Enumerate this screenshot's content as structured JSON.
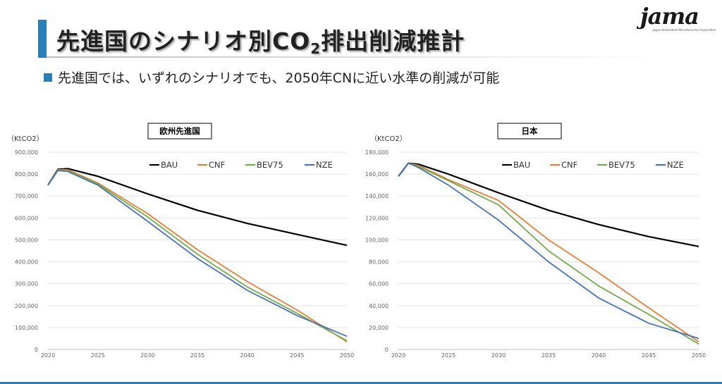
{
  "header": {
    "title_main": "先進国のシナリオ別CO",
    "title_sub": "2",
    "title_rest": "排出削減推計",
    "logo_word": "jama",
    "logo_tagline": "Japan Automobile Manufacturers Association"
  },
  "bullet": "先進国では、いずれのシナリオでも、2050年CNに近い水準の削減が可能",
  "colors": {
    "BAU": "#000000",
    "CNF": "#ed7d31",
    "BEV75": "#70ad47",
    "NZE": "#4472c4",
    "accent": "#2a7fb8"
  },
  "chart_data": [
    {
      "type": "line",
      "title": "欧州先進国",
      "ylabel": "（KtCO2）",
      "xlim": [
        2020,
        2050
      ],
      "ylim": [
        0,
        900000
      ],
      "x_ticks": [
        2020,
        2025,
        2030,
        2035,
        2040,
        2045,
        2050
      ],
      "y_ticks": [
        0,
        100000,
        200000,
        300000,
        400000,
        500000,
        600000,
        700000,
        800000,
        900000
      ],
      "y_tick_labels": [
        "0",
        "100,000",
        "200,000",
        "300,000",
        "400,000",
        "500,000",
        "600,000",
        "700,000",
        "800,000",
        "900,000"
      ],
      "grid": true,
      "legend": "top-right",
      "x": [
        2020,
        2021,
        2022,
        2025,
        2030,
        2035,
        2040,
        2045,
        2050
      ],
      "series": [
        {
          "name": "BAU",
          "values": [
            750000,
            822000,
            825000,
            790000,
            710000,
            635000,
            575000,
            525000,
            475000
          ]
        },
        {
          "name": "CNF",
          "values": [
            750000,
            820000,
            820000,
            760000,
            620000,
            455000,
            310000,
            180000,
            35000
          ]
        },
        {
          "name": "BEV75",
          "values": [
            750000,
            818000,
            815000,
            755000,
            605000,
            435000,
            285000,
            165000,
            40000
          ]
        },
        {
          "name": "NZE",
          "values": [
            750000,
            816000,
            812000,
            750000,
            585000,
            415000,
            270000,
            155000,
            60000
          ]
        }
      ]
    },
    {
      "type": "line",
      "title": "日本",
      "ylabel": "（KtCO2）",
      "xlim": [
        2020,
        2050
      ],
      "ylim": [
        0,
        180000
      ],
      "x_ticks": [
        2020,
        2025,
        2030,
        2035,
        2040,
        2045,
        2050
      ],
      "y_ticks": [
        0,
        20000,
        40000,
        60000,
        80000,
        100000,
        120000,
        140000,
        160000,
        180000
      ],
      "y_tick_labels": [
        "0",
        "20,000",
        "40,000",
        "60,000",
        "80,000",
        "100,000",
        "120,000",
        "140,000",
        "160,000",
        "180,000"
      ],
      "grid": true,
      "legend": "top-right",
      "x": [
        2020,
        2021,
        2022,
        2025,
        2030,
        2035,
        2040,
        2045,
        2050
      ],
      "series": [
        {
          "name": "BAU",
          "values": [
            158000,
            170000,
            169000,
            160000,
            143000,
            127000,
            114000,
            103000,
            94000
          ]
        },
        {
          "name": "CNF",
          "values": [
            158000,
            170000,
            168000,
            155000,
            136000,
            100000,
            70000,
            38000,
            7000
          ]
        },
        {
          "name": "BEV75",
          "values": [
            158000,
            170000,
            167000,
            154000,
            132000,
            90000,
            58000,
            32000,
            5000
          ]
        },
        {
          "name": "NZE",
          "values": [
            158000,
            170000,
            166000,
            150000,
            118000,
            80000,
            47000,
            24000,
            10000
          ]
        }
      ]
    }
  ]
}
